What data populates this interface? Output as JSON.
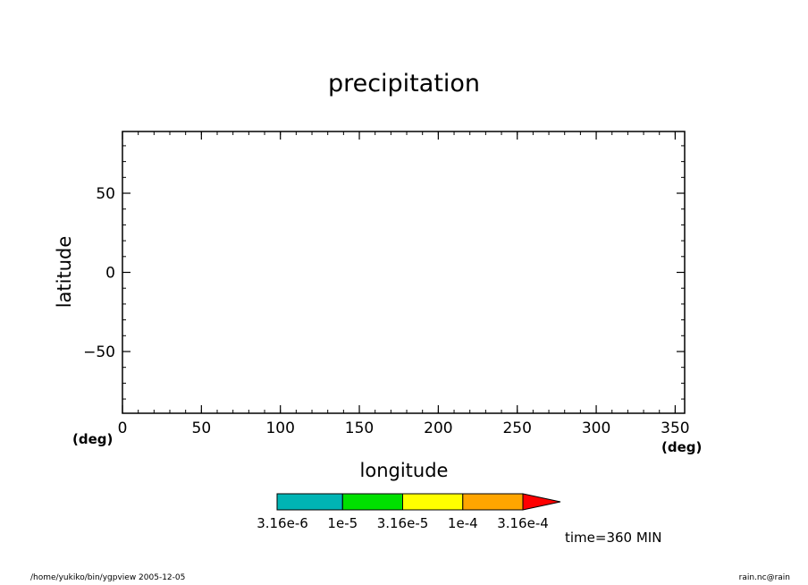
{
  "chart_data": {
    "type": "heatmap",
    "title": "precipitation",
    "xlabel": "longitude",
    "ylabel": "latitude",
    "x_unit": "(deg)",
    "y_unit": "(deg)",
    "xlim": [
      0,
      356
    ],
    "ylim": [
      -89,
      89
    ],
    "x_ticks": [
      0,
      50,
      100,
      150,
      200,
      250,
      300,
      350
    ],
    "x_tick_labels": [
      "0",
      "50",
      "100",
      "150",
      "200",
      "250",
      "300",
      "350"
    ],
    "y_ticks": [
      -50,
      0,
      50
    ],
    "y_tick_labels": [
      "−50",
      "0",
      "50"
    ],
    "x_minor_step": 10,
    "y_minor_step": 10,
    "grid": false,
    "colorbar": {
      "levels": [
        3.16e-06,
        1e-05,
        3.16e-05,
        0.0001,
        0.000316
      ],
      "colors": [
        "#00b4b4",
        "#00e000",
        "#ffff00",
        "#ffa500",
        "#ff0000"
      ],
      "tick_labels": [
        "3.16e-6",
        "1e-5",
        "3.16e-5",
        "1e-4",
        "3.16e-4"
      ],
      "extend": "max"
    }
  },
  "time_label": "time=360  MIN",
  "footer": {
    "left": "/home/yukiko/bin/ygpview  2005-12-05",
    "right": "rain.nc@rain"
  }
}
